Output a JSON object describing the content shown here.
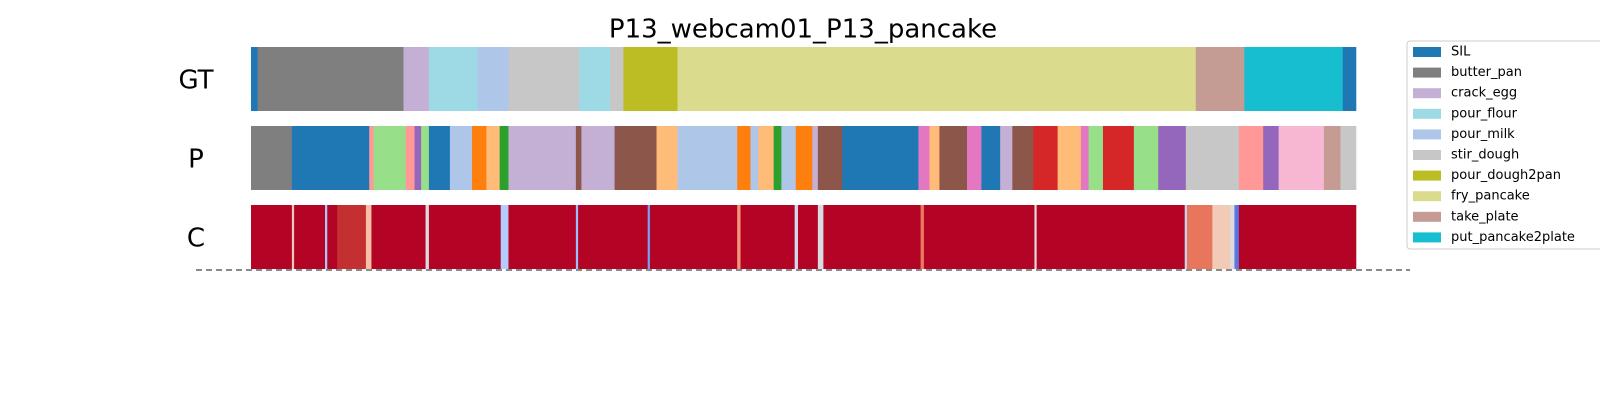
{
  "chart_data": {
    "type": "segmentation",
    "title": "P13_webcam01_P13_pancake",
    "xlim": [
      0,
      100
    ],
    "rows": [
      {
        "label": "GT",
        "ends": [
          0.6,
          13.8,
          16.1,
          20.5,
          23.3,
          29.7,
          32.5,
          33.7,
          38.6,
          85.5,
          89.9,
          98.8,
          100
        ],
        "colors": [
          "#1f77b4",
          "#7f7f7f",
          "#c5b0d5",
          "#9edae5",
          "#aec7e8",
          "#c7c7c7",
          "#9edae5",
          "#c7c7c7",
          "#bcbd22",
          "#dbdb8d",
          "#c49c94",
          "#17becf",
          "#1f77b4"
        ]
      },
      {
        "label": "P",
        "ends": [
          3.7,
          10.7,
          11.1,
          14.0,
          14.8,
          15.4,
          16.1,
          18.0,
          20.0,
          21.3,
          22.5,
          23.3,
          29.4,
          29.9,
          32.9,
          36.7,
          38.6,
          44.0,
          45.2,
          45.9,
          47.3,
          48.0,
          49.3,
          50.8,
          51.3,
          53.5,
          60.4,
          61.4,
          62.3,
          64.8,
          66.1,
          67.8,
          68.9,
          70.8,
          73.0,
          75.1,
          75.8,
          77.1,
          79.9,
          82.1,
          84.6,
          89.4,
          91.6,
          93.0,
          97.1,
          98.6,
          100
        ],
        "colors": [
          "#7f7f7f",
          "#1f77b4",
          "#ff9896",
          "#98df8a",
          "#ff9896",
          "#9467bd",
          "#98df8a",
          "#1f77b4",
          "#aec7e8",
          "#ff7f0e",
          "#ffbb78",
          "#2ca02c",
          "#c5b0d5",
          "#8c564b",
          "#c5b0d5",
          "#8c564b",
          "#ffbb78",
          "#aec7e8",
          "#ff7f0e",
          "#aec7e8",
          "#ffbb78",
          "#2ca02c",
          "#aec7e8",
          "#ff7f0e",
          "#c5b0d5",
          "#8c564b",
          "#1f77b4",
          "#e377c2",
          "#ffbb78",
          "#8c564b",
          "#e377c2",
          "#1f77b4",
          "#c5b0d5",
          "#8c564b",
          "#d62728",
          "#ffbb78",
          "#e377c2",
          "#98df8a",
          "#d62728",
          "#98df8a",
          "#9467bd",
          "#c7c7c7",
          "#ff9896",
          "#9467bd",
          "#f7b6d2",
          "#c49c94",
          "#c7c7c7"
        ]
      },
      {
        "label": "C",
        "ends": [
          3.7,
          3.9,
          6.7,
          6.9,
          7.8,
          10.4,
          10.9,
          15.8,
          16.1,
          22.6,
          23.3,
          29.4,
          29.6,
          35.9,
          36.1,
          44.0,
          44.3,
          49.2,
          49.5,
          51.3,
          51.8,
          60.6,
          60.9,
          70.9,
          71.1,
          84.5,
          84.7,
          87.0,
          88.6,
          89.0,
          89.4,
          100
        ],
        "colors": [
          "#b40426",
          "#f2cbb7",
          "#b40426",
          "#aac7fd",
          "#b40426",
          "#c43032",
          "#f6bfa6",
          "#b40426",
          "#dddcdc",
          "#b40426",
          "#b2ccfb",
          "#b40426",
          "#9ebeff",
          "#b40426",
          "#7b9ff9",
          "#b40426",
          "#f4987a",
          "#b40426",
          "#cfdaea",
          "#b40426",
          "#d8dce2",
          "#b40426",
          "#e9785d",
          "#b40426",
          "#dfdbd9",
          "#b40426",
          "#c7d7f0",
          "#e8765c",
          "#f2cbb7",
          "#dfdbd9",
          "#5977e3",
          "#b40426"
        ]
      }
    ],
    "legend": [
      {
        "name": "SIL",
        "color": "#1f77b4"
      },
      {
        "name": "butter_pan",
        "color": "#7f7f7f"
      },
      {
        "name": "crack_egg",
        "color": "#c5b0d5"
      },
      {
        "name": "pour_flour",
        "color": "#9edae5"
      },
      {
        "name": "pour_milk",
        "color": "#aec7e8"
      },
      {
        "name": "stir_dough",
        "color": "#c7c7c7"
      },
      {
        "name": "pour_dough2pan",
        "color": "#bcbd22"
      },
      {
        "name": "fry_pancake",
        "color": "#dbdb8d"
      },
      {
        "name": "take_plate",
        "color": "#c49c94"
      },
      {
        "name": "put_pancake2plate",
        "color": "#17becf"
      }
    ]
  }
}
